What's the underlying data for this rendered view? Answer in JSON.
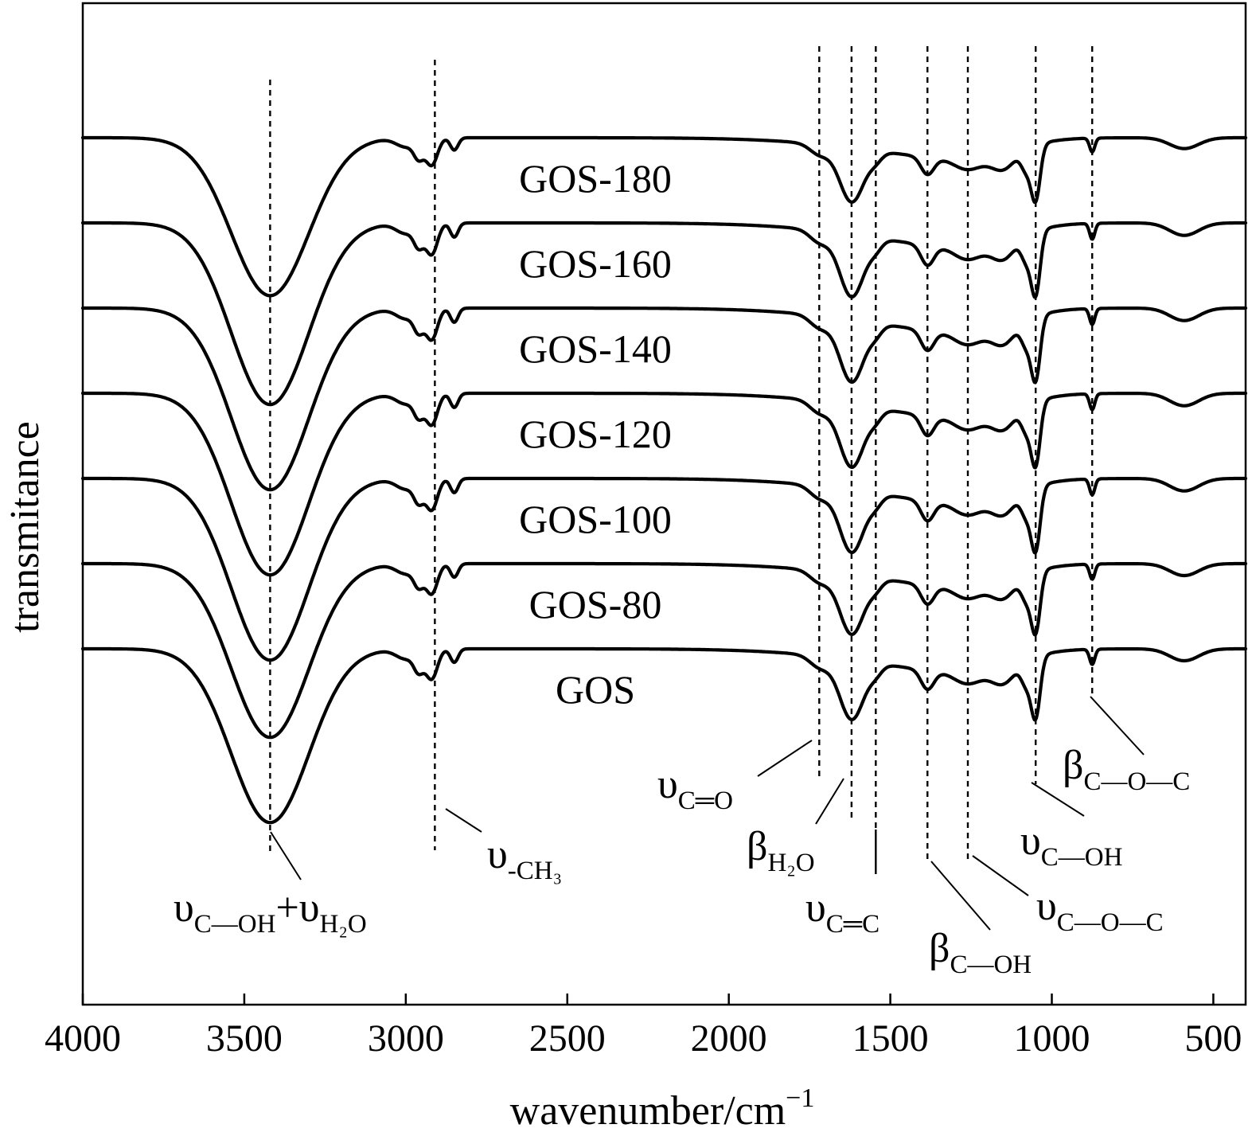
{
  "chart_data": {
    "type": "line",
    "title": "",
    "xlabel_main": "wavenumber/cm",
    "xlabel_sup": "−1",
    "ylabel": "transmitance",
    "xlim": [
      4000,
      400
    ],
    "x_reversed": true,
    "y_ticks_shown": false,
    "grid": false,
    "x_ticks": [
      4000,
      3500,
      3000,
      2500,
      2000,
      1500,
      1000,
      500
    ],
    "x_tick_labels": [
      "4000",
      "3500",
      "3000",
      "2500",
      "2000",
      "1500",
      "1000",
      "500"
    ],
    "guide_wavenumbers": [
      3420,
      2910,
      1720,
      1620,
      1545,
      1385,
      1260,
      1050,
      875
    ],
    "series": [
      {
        "name": "GOS-180",
        "offset": 6,
        "depth": 1.0
      },
      {
        "name": "GOS-160",
        "offset": 5,
        "depth": 1.15
      },
      {
        "name": "GOS-140",
        "offset": 4,
        "depth": 1.15
      },
      {
        "name": "GOS-120",
        "offset": 3,
        "depth": 1.15
      },
      {
        "name": "GOS-100",
        "offset": 2,
        "depth": 1.15
      },
      {
        "name": "GOS-80",
        "offset": 1,
        "depth": 1.1
      },
      {
        "name": "GOS",
        "offset": 0,
        "depth": 1.1
      }
    ],
    "band_assignments": [
      {
        "symbol": "υ",
        "sub": "C—OH",
        "plus": "+",
        "symbol2": "υ",
        "sub2": "H₂O",
        "wavenumber": 3420
      },
      {
        "symbol": "υ",
        "sub": "-CH₃",
        "wavenumber": 2910
      },
      {
        "symbol": "υ",
        "sub": "C═O",
        "wavenumber": 1720
      },
      {
        "symbol": "β",
        "sub": "H₂O",
        "wavenumber": 1620
      },
      {
        "symbol": "υ",
        "sub": "C═C",
        "wavenumber": 1545
      },
      {
        "symbol": "β",
        "sub": "C—OH",
        "wavenumber": 1385
      },
      {
        "symbol": "υ",
        "sub": "C—O—C",
        "wavenumber": 1260
      },
      {
        "symbol": "υ",
        "sub": "C—OH",
        "wavenumber": 1050
      },
      {
        "symbol": "β",
        "sub": "C—O—C",
        "wavenumber": 875
      }
    ]
  }
}
